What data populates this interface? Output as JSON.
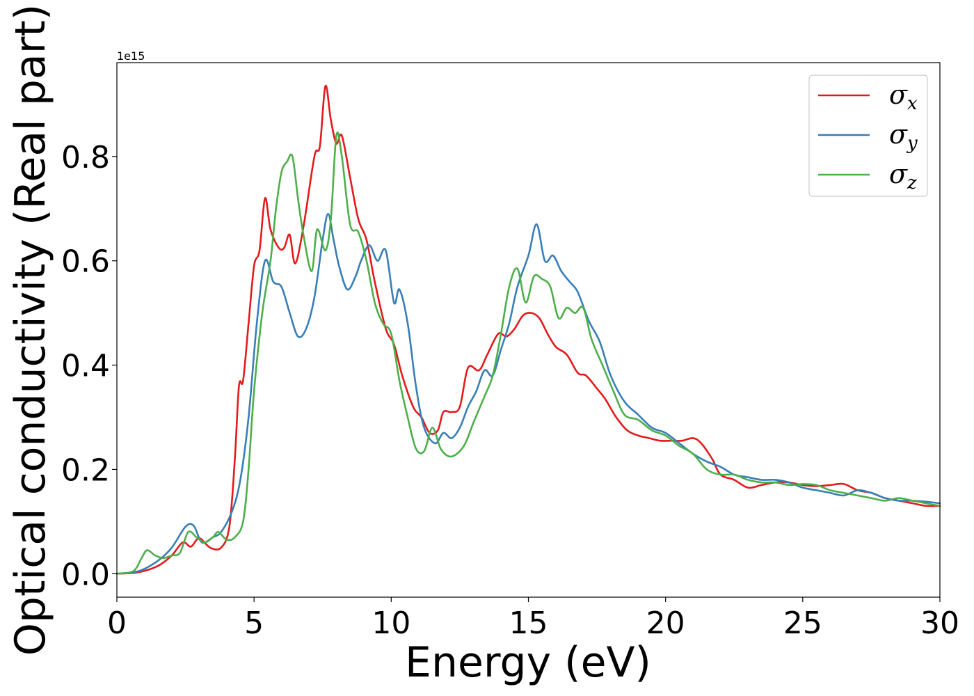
{
  "chart_data": {
    "type": "line",
    "title": "",
    "xlabel": "Energy (eV)",
    "ylabel": "Optical conductivity (Real part)",
    "y_offset_label": "1e15",
    "xlim": [
      0,
      30
    ],
    "ylim": [
      -0.045,
      0.98
    ],
    "xticks": [
      0,
      5,
      10,
      15,
      20,
      25,
      30
    ],
    "xtick_labels": [
      "0",
      "5",
      "10",
      "15",
      "20",
      "25",
      "30"
    ],
    "yticks": [
      0.0,
      0.2,
      0.4,
      0.6,
      0.8
    ],
    "ytick_labels": [
      "0.0",
      "0.2",
      "0.4",
      "0.6",
      "0.8"
    ],
    "grid": false,
    "legend_position": "top-right",
    "series": [
      {
        "name": "σx",
        "symbol": "σ",
        "subscript": "x",
        "color": "#e41a1c",
        "points": [
          [
            0,
            0
          ],
          [
            0.8,
            0.003
          ],
          [
            1.5,
            0.015
          ],
          [
            2,
            0.035
          ],
          [
            2.4,
            0.06
          ],
          [
            2.7,
            0.052
          ],
          [
            3,
            0.068
          ],
          [
            3.4,
            0.05
          ],
          [
            3.8,
            0.05
          ],
          [
            4.1,
            0.09
          ],
          [
            4.3,
            0.22
          ],
          [
            4.45,
            0.36
          ],
          [
            4.6,
            0.37
          ],
          [
            4.8,
            0.48
          ],
          [
            5,
            0.59
          ],
          [
            5.2,
            0.62
          ],
          [
            5.4,
            0.72
          ],
          [
            5.6,
            0.66
          ],
          [
            5.9,
            0.625
          ],
          [
            6.1,
            0.625
          ],
          [
            6.3,
            0.65
          ],
          [
            6.5,
            0.595
          ],
          [
            6.8,
            0.665
          ],
          [
            7.2,
            0.8
          ],
          [
            7.4,
            0.82
          ],
          [
            7.6,
            0.935
          ],
          [
            7.8,
            0.87
          ],
          [
            8,
            0.825
          ],
          [
            8.2,
            0.84
          ],
          [
            8.5,
            0.76
          ],
          [
            8.8,
            0.68
          ],
          [
            9.1,
            0.64
          ],
          [
            9.4,
            0.56
          ],
          [
            9.8,
            0.47
          ],
          [
            10.1,
            0.44
          ],
          [
            10.4,
            0.38
          ],
          [
            10.8,
            0.32
          ],
          [
            11.1,
            0.3
          ],
          [
            11.4,
            0.27
          ],
          [
            11.7,
            0.275
          ],
          [
            11.9,
            0.31
          ],
          [
            12.2,
            0.31
          ],
          [
            12.5,
            0.32
          ],
          [
            12.8,
            0.395
          ],
          [
            13.2,
            0.39
          ],
          [
            13.5,
            0.42
          ],
          [
            13.9,
            0.46
          ],
          [
            14.2,
            0.455
          ],
          [
            14.5,
            0.47
          ],
          [
            14.8,
            0.495
          ],
          [
            15.1,
            0.5
          ],
          [
            15.4,
            0.49
          ],
          [
            15.7,
            0.46
          ],
          [
            16,
            0.435
          ],
          [
            16.4,
            0.42
          ],
          [
            16.8,
            0.385
          ],
          [
            17.1,
            0.38
          ],
          [
            17.5,
            0.355
          ],
          [
            17.8,
            0.335
          ],
          [
            18.2,
            0.3
          ],
          [
            18.6,
            0.275
          ],
          [
            19,
            0.265
          ],
          [
            19.4,
            0.26
          ],
          [
            19.8,
            0.255
          ],
          [
            20.2,
            0.255
          ],
          [
            20.6,
            0.255
          ],
          [
            21,
            0.26
          ],
          [
            21.3,
            0.25
          ],
          [
            21.7,
            0.22
          ],
          [
            22,
            0.19
          ],
          [
            22.5,
            0.18
          ],
          [
            23,
            0.165
          ],
          [
            23.5,
            0.17
          ],
          [
            24,
            0.175
          ],
          [
            24.5,
            0.175
          ],
          [
            25,
            0.17
          ],
          [
            25.5,
            0.168
          ],
          [
            26,
            0.17
          ],
          [
            26.5,
            0.172
          ],
          [
            27,
            0.16
          ],
          [
            27.5,
            0.155
          ],
          [
            28,
            0.145
          ],
          [
            28.5,
            0.14
          ],
          [
            29,
            0.135
          ],
          [
            29.5,
            0.13
          ],
          [
            30,
            0.13
          ]
        ]
      },
      {
        "name": "σy",
        "symbol": "σ",
        "subscript": "y",
        "color": "#377eb8",
        "points": [
          [
            0,
            0
          ],
          [
            0.8,
            0.005
          ],
          [
            1.5,
            0.025
          ],
          [
            2,
            0.05
          ],
          [
            2.5,
            0.09
          ],
          [
            2.8,
            0.092
          ],
          [
            3.1,
            0.06
          ],
          [
            3.5,
            0.07
          ],
          [
            3.8,
            0.08
          ],
          [
            4.2,
            0.12
          ],
          [
            4.5,
            0.18
          ],
          [
            4.8,
            0.3
          ],
          [
            5.1,
            0.48
          ],
          [
            5.4,
            0.6
          ],
          [
            5.7,
            0.56
          ],
          [
            6,
            0.55
          ],
          [
            6.3,
            0.5
          ],
          [
            6.6,
            0.455
          ],
          [
            6.9,
            0.47
          ],
          [
            7.2,
            0.53
          ],
          [
            7.5,
            0.64
          ],
          [
            7.7,
            0.69
          ],
          [
            7.9,
            0.64
          ],
          [
            8.1,
            0.59
          ],
          [
            8.4,
            0.545
          ],
          [
            8.7,
            0.57
          ],
          [
            8.9,
            0.6
          ],
          [
            9.2,
            0.63
          ],
          [
            9.5,
            0.6
          ],
          [
            9.8,
            0.62
          ],
          [
            10.1,
            0.52
          ],
          [
            10.3,
            0.545
          ],
          [
            10.6,
            0.48
          ],
          [
            10.9,
            0.36
          ],
          [
            11.2,
            0.28
          ],
          [
            11.6,
            0.25
          ],
          [
            11.9,
            0.27
          ],
          [
            12.2,
            0.26
          ],
          [
            12.5,
            0.28
          ],
          [
            12.8,
            0.32
          ],
          [
            13.1,
            0.35
          ],
          [
            13.4,
            0.39
          ],
          [
            13.7,
            0.38
          ],
          [
            14,
            0.43
          ],
          [
            14.3,
            0.48
          ],
          [
            14.6,
            0.55
          ],
          [
            15,
            0.61
          ],
          [
            15.3,
            0.67
          ],
          [
            15.6,
            0.6
          ],
          [
            15.9,
            0.61
          ],
          [
            16.2,
            0.58
          ],
          [
            16.5,
            0.56
          ],
          [
            16.8,
            0.54
          ],
          [
            17.2,
            0.485
          ],
          [
            17.6,
            0.445
          ],
          [
            18,
            0.38
          ],
          [
            18.5,
            0.33
          ],
          [
            19,
            0.305
          ],
          [
            19.5,
            0.28
          ],
          [
            20,
            0.27
          ],
          [
            20.5,
            0.25
          ],
          [
            21,
            0.23
          ],
          [
            21.5,
            0.215
          ],
          [
            22,
            0.205
          ],
          [
            22.5,
            0.19
          ],
          [
            23,
            0.185
          ],
          [
            23.5,
            0.18
          ],
          [
            24,
            0.18
          ],
          [
            24.5,
            0.175
          ],
          [
            25,
            0.165
          ],
          [
            25.5,
            0.16
          ],
          [
            26,
            0.155
          ],
          [
            26.5,
            0.15
          ],
          [
            27,
            0.16
          ],
          [
            27.5,
            0.155
          ],
          [
            28,
            0.145
          ],
          [
            28.5,
            0.14
          ],
          [
            29,
            0.14
          ],
          [
            29.5,
            0.138
          ],
          [
            30,
            0.135
          ]
        ]
      },
      {
        "name": "σz",
        "symbol": "σ",
        "subscript": "z",
        "color": "#4daf4a",
        "points": [
          [
            0,
            0
          ],
          [
            0.6,
            0.005
          ],
          [
            0.9,
            0.03
          ],
          [
            1.1,
            0.045
          ],
          [
            1.4,
            0.035
          ],
          [
            1.7,
            0.03
          ],
          [
            2,
            0.035
          ],
          [
            2.3,
            0.04
          ],
          [
            2.6,
            0.08
          ],
          [
            2.9,
            0.07
          ],
          [
            3.2,
            0.06
          ],
          [
            3.5,
            0.07
          ],
          [
            3.7,
            0.08
          ],
          [
            4,
            0.065
          ],
          [
            4.3,
            0.07
          ],
          [
            4.6,
            0.1
          ],
          [
            4.8,
            0.2
          ],
          [
            5,
            0.35
          ],
          [
            5.3,
            0.5
          ],
          [
            5.6,
            0.6
          ],
          [
            5.8,
            0.7
          ],
          [
            6,
            0.77
          ],
          [
            6.2,
            0.79
          ],
          [
            6.4,
            0.8
          ],
          [
            6.6,
            0.72
          ],
          [
            6.8,
            0.65
          ],
          [
            7.1,
            0.58
          ],
          [
            7.3,
            0.66
          ],
          [
            7.6,
            0.62
          ],
          [
            7.8,
            0.68
          ],
          [
            8,
            0.84
          ],
          [
            8.2,
            0.8
          ],
          [
            8.5,
            0.67
          ],
          [
            8.8,
            0.655
          ],
          [
            9.1,
            0.6
          ],
          [
            9.4,
            0.52
          ],
          [
            9.7,
            0.48
          ],
          [
            10,
            0.46
          ],
          [
            10.3,
            0.37
          ],
          [
            10.6,
            0.3
          ],
          [
            10.9,
            0.24
          ],
          [
            11.2,
            0.235
          ],
          [
            11.5,
            0.28
          ],
          [
            11.8,
            0.24
          ],
          [
            12.1,
            0.225
          ],
          [
            12.4,
            0.23
          ],
          [
            12.7,
            0.25
          ],
          [
            13,
            0.29
          ],
          [
            13.4,
            0.34
          ],
          [
            13.7,
            0.38
          ],
          [
            14,
            0.46
          ],
          [
            14.3,
            0.55
          ],
          [
            14.6,
            0.585
          ],
          [
            14.9,
            0.52
          ],
          [
            15.2,
            0.57
          ],
          [
            15.5,
            0.565
          ],
          [
            15.8,
            0.55
          ],
          [
            16.1,
            0.49
          ],
          [
            16.4,
            0.51
          ],
          [
            16.7,
            0.5
          ],
          [
            17,
            0.51
          ],
          [
            17.3,
            0.45
          ],
          [
            17.7,
            0.4
          ],
          [
            18.1,
            0.35
          ],
          [
            18.5,
            0.305
          ],
          [
            19,
            0.295
          ],
          [
            19.5,
            0.275
          ],
          [
            20,
            0.265
          ],
          [
            20.5,
            0.245
          ],
          [
            21,
            0.23
          ],
          [
            21.5,
            0.2
          ],
          [
            22,
            0.19
          ],
          [
            22.5,
            0.19
          ],
          [
            23,
            0.18
          ],
          [
            23.5,
            0.175
          ],
          [
            24,
            0.175
          ],
          [
            24.5,
            0.17
          ],
          [
            25,
            0.172
          ],
          [
            25.5,
            0.17
          ],
          [
            26,
            0.16
          ],
          [
            26.5,
            0.155
          ],
          [
            27,
            0.15
          ],
          [
            27.5,
            0.145
          ],
          [
            28,
            0.14
          ],
          [
            28.5,
            0.145
          ],
          [
            29,
            0.14
          ],
          [
            29.5,
            0.135
          ],
          [
            30,
            0.13
          ]
        ]
      }
    ]
  }
}
